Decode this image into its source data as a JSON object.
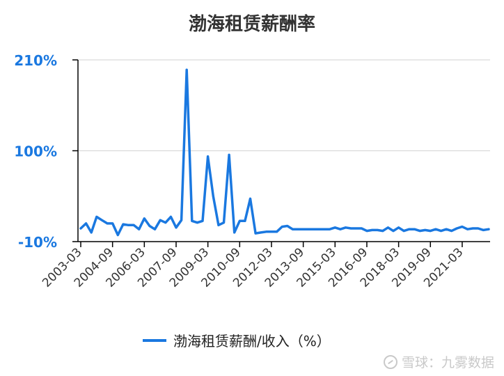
{
  "chart_data": {
    "type": "line",
    "title": "渤海租赁薪酬率",
    "xlabel": "",
    "ylabel": "",
    "ylim": [
      -10,
      210
    ],
    "y_ticks": [
      "210%",
      "100%",
      "-10%"
    ],
    "y_tick_values": [
      210,
      100,
      -10
    ],
    "x_ticks": [
      "2003-03",
      "2004-09",
      "2006-03",
      "2007-09",
      "2009-03",
      "2010-09",
      "2012-03",
      "2013-09",
      "2015-03",
      "2016-09",
      "2018-03",
      "2019-09",
      "2021-03"
    ],
    "grid": true,
    "legend_position": "bottom",
    "series": [
      {
        "name": "渤海租赁薪酬/收入（%）",
        "color": "#1a78e0",
        "x": [
          "2003-03",
          "2003-06",
          "2003-09",
          "2003-12",
          "2004-03",
          "2004-06",
          "2004-09",
          "2004-12",
          "2005-03",
          "2005-06",
          "2005-09",
          "2005-12",
          "2006-03",
          "2006-06",
          "2006-09",
          "2006-12",
          "2007-03",
          "2007-06",
          "2007-09",
          "2007-12",
          "2008-03",
          "2008-06",
          "2008-09",
          "2008-12",
          "2009-03",
          "2009-06",
          "2009-09",
          "2009-12",
          "2010-03",
          "2010-06",
          "2010-09",
          "2010-12",
          "2011-03",
          "2011-06",
          "2011-09",
          "2011-12",
          "2012-03",
          "2012-06",
          "2012-09",
          "2012-12",
          "2013-03",
          "2013-06",
          "2013-09",
          "2013-12",
          "2014-03",
          "2014-06",
          "2014-09",
          "2014-12",
          "2015-03",
          "2015-06",
          "2015-09",
          "2015-12",
          "2016-03",
          "2016-06",
          "2016-09",
          "2016-12",
          "2017-03",
          "2017-06",
          "2017-09",
          "2017-12",
          "2018-03",
          "2018-06",
          "2018-09",
          "2018-12",
          "2019-03",
          "2019-06",
          "2019-09",
          "2019-12",
          "2020-03",
          "2020-06",
          "2020-09",
          "2020-12",
          "2021-03",
          "2021-06",
          "2021-09",
          "2021-12",
          "2022-03",
          "2022-06"
        ],
        "values": [
          6,
          12,
          1,
          20,
          16,
          12,
          12,
          -2,
          11,
          10,
          10,
          5,
          18,
          9,
          5,
          16,
          13,
          20,
          7,
          16,
          198,
          15,
          13,
          15,
          93,
          45,
          10,
          13,
          95,
          1,
          15,
          15,
          42,
          0,
          1,
          2,
          2,
          2,
          8,
          9,
          5,
          5,
          5,
          5,
          5,
          5,
          5,
          5,
          7,
          5,
          7,
          6,
          6,
          6,
          3,
          4,
          4,
          3,
          7,
          3,
          7,
          3,
          5,
          5,
          3,
          4,
          3,
          5,
          3,
          5,
          3,
          6,
          8,
          5,
          6,
          6,
          4,
          5
        ]
      }
    ]
  },
  "watermark": {
    "text": "雪球：九雾数据"
  }
}
